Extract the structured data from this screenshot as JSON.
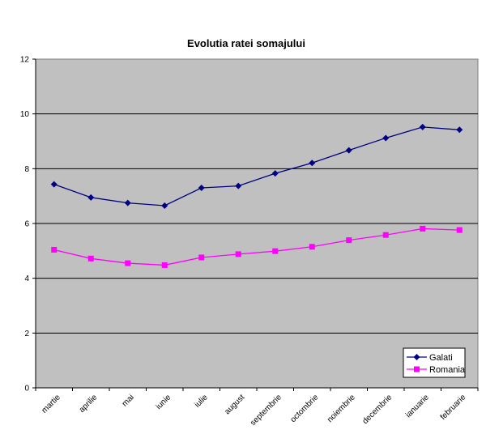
{
  "chart_data": {
    "type": "line",
    "title": "Evolutia ratei somajului",
    "xlabel": "",
    "ylabel": "",
    "categories": [
      "martie",
      "aprilie",
      "mai",
      "iunie",
      "iulie",
      "august",
      "septembrie",
      "octombrie",
      "noiembrie",
      "decembrie",
      "ianuarie",
      "februarie"
    ],
    "ylim": [
      0,
      12
    ],
    "yticks": [
      "0",
      "2",
      "4",
      "6",
      "8",
      "10",
      "12"
    ],
    "grid": true,
    "legend_position": "bottom-right",
    "background": "#c0c0c0",
    "series": [
      {
        "name": "Galati",
        "color": "#000080",
        "marker": "diamond",
        "values": [
          7.43,
          6.95,
          6.75,
          6.65,
          7.3,
          7.37,
          7.83,
          8.21,
          8.67,
          9.12,
          9.52,
          9.42
        ]
      },
      {
        "name": "Romania",
        "color": "#ff00ff",
        "marker": "square",
        "values": [
          5.04,
          4.72,
          4.55,
          4.48,
          4.76,
          4.88,
          4.99,
          5.15,
          5.39,
          5.58,
          5.81,
          5.76
        ]
      }
    ]
  }
}
